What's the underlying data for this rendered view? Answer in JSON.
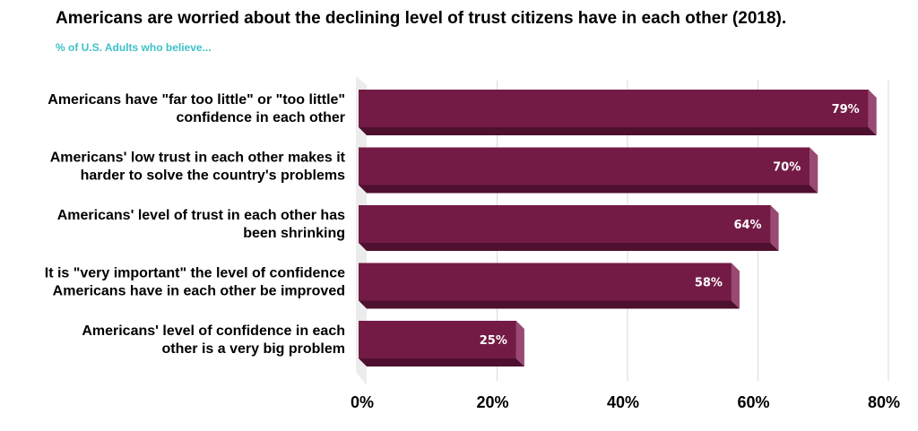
{
  "colors": {
    "bar_front": "#731b45",
    "bar_side": "#9a4a72",
    "bar_bottom": "#4f0f2f",
    "subtitle": "#3fc1c9",
    "grid": "#d9d9d9",
    "wall": "#ececec"
  },
  "chart_data": {
    "type": "bar",
    "orientation": "horizontal",
    "title": "Americans are worried about the declining level of trust citizens have in each other (2018).",
    "subtitle": "% of U.S. Adults who believe...",
    "categories": [
      [
        "Americans have \"far too little\" or \"too little\"",
        "confidence in each other"
      ],
      [
        "Americans' low trust in each other makes it",
        "harder to solve the country's problems"
      ],
      [
        "Americans' level of trust in each other has",
        "been shrinking"
      ],
      [
        "It is \"very important\" the level of confidence",
        "Americans have in each other be improved"
      ],
      [
        "Americans' level of confidence in each",
        "other is a very big problem"
      ]
    ],
    "values": [
      79,
      70,
      64,
      58,
      25
    ],
    "value_labels": [
      "79%",
      "70%",
      "64%",
      "58%",
      "25%"
    ],
    "xlim": [
      0,
      80
    ],
    "x_ticks": [
      0,
      20,
      40,
      60,
      80
    ],
    "x_tick_labels": [
      "0%",
      "20%",
      "40%",
      "60%",
      "80%"
    ],
    "grid": true
  }
}
